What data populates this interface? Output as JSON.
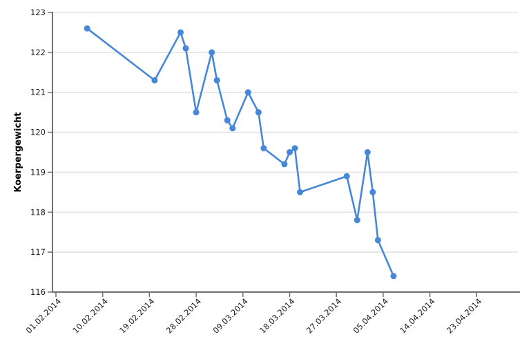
{
  "chart_data": {
    "type": "line",
    "title": "",
    "xlabel": "",
    "ylabel": "Koerpergewicht",
    "ylim": [
      116,
      123
    ],
    "y_tick_labels": [
      "116",
      "117",
      "118",
      "119",
      "120",
      "121",
      "122",
      "123"
    ],
    "x_tick_labels": [
      "01.02.2014",
      "10.02.2014",
      "19.02.2014",
      "28.02.2014",
      "09.03.2014",
      "18.03.2014",
      "27.03.2014",
      "05.04.2014",
      "14.04.2014",
      "23.04.2014"
    ],
    "x_tick_interval_days": 9,
    "x_range_days": [
      0,
      89
    ],
    "grid": "horizontal-only",
    "legend": "none",
    "colors": {
      "series": "#4787d8",
      "axis": "#6f6f6f",
      "grid": "#e2e2e2",
      "text": "#1c1c1c",
      "background": "#ffffff"
    },
    "series": [
      {
        "name": "Koerpergewicht",
        "marker": "circle",
        "points": [
          {
            "day": 6,
            "date_est": "07.02.2014",
            "value": 122.6
          },
          {
            "day": 19,
            "date_est": "20.02.2014",
            "value": 121.3
          },
          {
            "day": 24,
            "date_est": "25.02.2014",
            "value": 122.5
          },
          {
            "day": 25,
            "date_est": "26.02.2014",
            "value": 122.1
          },
          {
            "day": 27,
            "date_est": "28.02.2014",
            "value": 120.5
          },
          {
            "day": 30,
            "date_est": "03.03.2014",
            "value": 122.0
          },
          {
            "day": 31,
            "date_est": "04.03.2014",
            "value": 121.3
          },
          {
            "day": 33,
            "date_est": "06.03.2014",
            "value": 120.3
          },
          {
            "day": 34,
            "date_est": "07.03.2014",
            "value": 120.1
          },
          {
            "day": 37,
            "date_est": "10.03.2014",
            "value": 121.0
          },
          {
            "day": 39,
            "date_est": "12.03.2014",
            "value": 120.5
          },
          {
            "day": 40,
            "date_est": "13.03.2014",
            "value": 119.6
          },
          {
            "day": 44,
            "date_est": "17.03.2014",
            "value": 119.2
          },
          {
            "day": 45,
            "date_est": "18.03.2014",
            "value": 119.5
          },
          {
            "day": 46,
            "date_est": "19.03.2014",
            "value": 119.6
          },
          {
            "day": 47,
            "date_est": "20.03.2014",
            "value": 118.5
          },
          {
            "day": 56,
            "date_est": "29.03.2014",
            "value": 118.9
          },
          {
            "day": 58,
            "date_est": "31.03.2014",
            "value": 117.8
          },
          {
            "day": 60,
            "date_est": "02.04.2014",
            "value": 119.5
          },
          {
            "day": 61,
            "date_est": "03.04.2014",
            "value": 118.5
          },
          {
            "day": 62,
            "date_est": "04.04.2014",
            "value": 117.3
          },
          {
            "day": 65,
            "date_est": "07.04.2014",
            "value": 116.4
          }
        ]
      }
    ]
  }
}
